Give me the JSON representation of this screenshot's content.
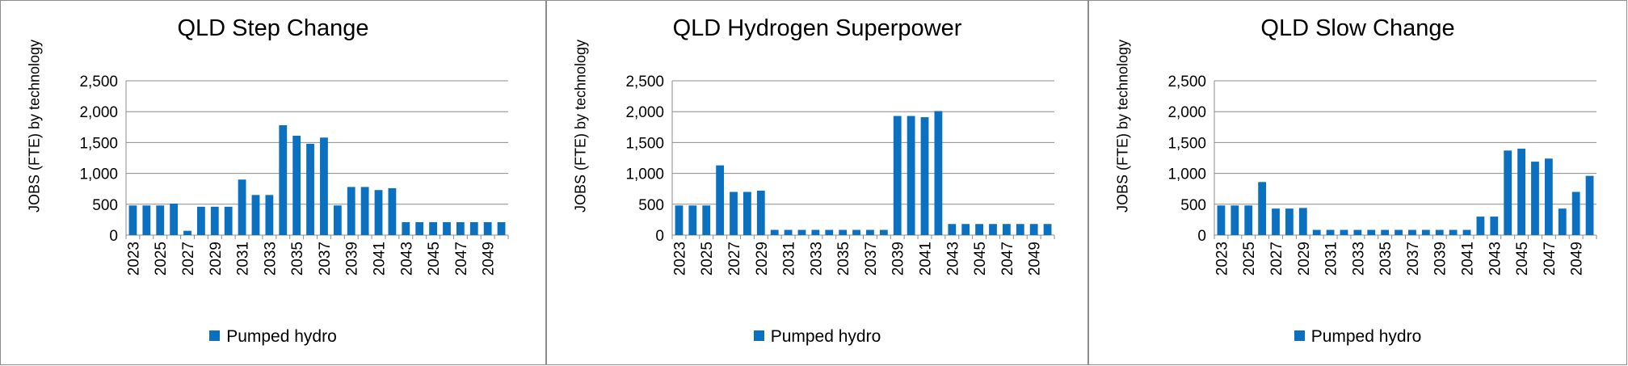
{
  "chart_data": [
    {
      "type": "bar",
      "title": "QLD Step Change",
      "ylabel": "JOBS (FTE) by technology",
      "ylim": [
        0,
        2500
      ],
      "yticks": [
        "0",
        "500",
        "1,000",
        "1,500",
        "2,000",
        "2,500"
      ],
      "grid": true,
      "legend": "bottom",
      "bar_color": "#0b70c0",
      "categories": [
        "2023",
        "2024",
        "2025",
        "2026",
        "2027",
        "2028",
        "2029",
        "2030",
        "2031",
        "2032",
        "2033",
        "2034",
        "2035",
        "2036",
        "2037",
        "2038",
        "2039",
        "2040",
        "2041",
        "2042",
        "2043",
        "2044",
        "2045",
        "2046",
        "2047",
        "2048",
        "2049",
        "2050"
      ],
      "xtick_labels": [
        "2023",
        "2025",
        "2027",
        "2029",
        "2031",
        "2033",
        "2035",
        "2037",
        "2039",
        "2041",
        "2043",
        "2045",
        "2047",
        "2049"
      ],
      "series": [
        {
          "name": "Pumped hydro",
          "values": [
            480,
            480,
            480,
            510,
            70,
            460,
            460,
            460,
            900,
            650,
            650,
            1780,
            1610,
            1480,
            1580,
            480,
            780,
            780,
            730,
            760,
            210,
            210,
            210,
            210,
            210,
            210,
            210,
            210
          ]
        }
      ]
    },
    {
      "type": "bar",
      "title": "QLD Hydrogen Superpower",
      "ylabel": "JOBS (FTE) by technology",
      "ylim": [
        0,
        2500
      ],
      "yticks": [
        "0",
        "500",
        "1,000",
        "1,500",
        "2,000",
        "2,500"
      ],
      "grid": true,
      "legend": "bottom",
      "bar_color": "#0b70c0",
      "categories": [
        "2023",
        "2024",
        "2025",
        "2026",
        "2027",
        "2028",
        "2029",
        "2030",
        "2031",
        "2032",
        "2033",
        "2034",
        "2035",
        "2036",
        "2037",
        "2038",
        "2039",
        "2040",
        "2041",
        "2042",
        "2043",
        "2044",
        "2045",
        "2046",
        "2047",
        "2048",
        "2049",
        "2050"
      ],
      "xtick_labels": [
        "2023",
        "2025",
        "2027",
        "2029",
        "2031",
        "2033",
        "2035",
        "2037",
        "2039",
        "2041",
        "2043",
        "2045",
        "2047",
        "2049"
      ],
      "series": [
        {
          "name": "Pumped hydro",
          "values": [
            480,
            480,
            480,
            1130,
            700,
            700,
            720,
            85,
            85,
            85,
            85,
            85,
            85,
            85,
            85,
            85,
            1930,
            1930,
            1910,
            2010,
            180,
            180,
            180,
            180,
            180,
            180,
            180,
            180
          ]
        }
      ]
    },
    {
      "type": "bar",
      "title": "QLD Slow Change",
      "ylabel": "JOBS (FTE) by technology",
      "ylim": [
        0,
        2500
      ],
      "yticks": [
        "0",
        "500",
        "1,000",
        "1,500",
        "2,000",
        "2,500"
      ],
      "grid": true,
      "legend": "bottom",
      "bar_color": "#0b70c0",
      "categories": [
        "2023",
        "2024",
        "2025",
        "2026",
        "2027",
        "2028",
        "2029",
        "2030",
        "2031",
        "2032",
        "2033",
        "2034",
        "2035",
        "2036",
        "2037",
        "2038",
        "2039",
        "2040",
        "2041",
        "2042",
        "2043",
        "2044",
        "2045",
        "2046",
        "2047",
        "2048",
        "2049",
        "2050"
      ],
      "xtick_labels": [
        "2023",
        "2025",
        "2027",
        "2029",
        "2031",
        "2033",
        "2035",
        "2037",
        "2039",
        "2041",
        "2043",
        "2045",
        "2047",
        "2049"
      ],
      "series": [
        {
          "name": "Pumped hydro",
          "values": [
            480,
            480,
            480,
            860,
            430,
            430,
            440,
            85,
            85,
            85,
            85,
            85,
            85,
            85,
            85,
            85,
            85,
            85,
            85,
            300,
            300,
            1370,
            1400,
            1190,
            1240,
            430,
            700,
            960
          ]
        }
      ]
    }
  ]
}
